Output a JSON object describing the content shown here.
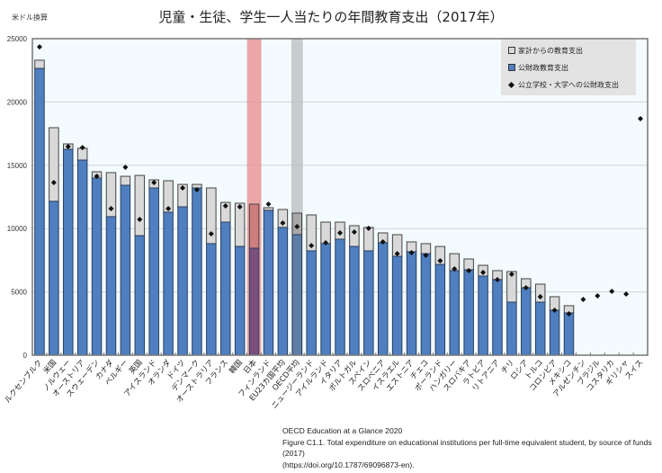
{
  "title": "児童・生徒、学生一人当たりの年間教育支出（2017年）",
  "unit_label": "米ドル換算",
  "legend": {
    "household": "家計からの教育支出",
    "public": "公財政教育支出",
    "public_institutions": "公立学校・大学への公財政支出"
  },
  "footer": {
    "line1": "OECD Education at a Glance 2020",
    "line2": "Figure C1.1. Total expenditure on educational institutions per full-time equivalent student, by source of funds (2017)",
    "line3": "(https://doi.org/10.1787/69096873-en)."
  },
  "colors": {
    "public": "#4f7fc0",
    "household": "#d9d9d9",
    "plot_bg": "#f3fbfe",
    "japan_highlight": "#e88a8a",
    "oecd_highlight": "#b8bcbc",
    "japan_public": "#7a4f7e",
    "oecd_public": "#5e7ea8"
  },
  "chart_data": {
    "type": "bar",
    "stacked": true,
    "title": "児童・生徒、学生一人当たりの年間教育支出（2017年）",
    "xlabel": "",
    "ylabel": "米ドル換算",
    "ylim": [
      0,
      25000
    ],
    "yticks": [
      0,
      5000,
      10000,
      15000,
      20000,
      25000
    ],
    "grid": true,
    "legend_position": "top-right",
    "highlighted_categories": [
      "日本",
      "OECD平均"
    ],
    "categories": [
      "ルクセンブルク",
      "米国",
      "ノルウェー",
      "オーストリア",
      "スウェーデン",
      "カナダ",
      "ベルギー",
      "英国",
      "アイスランド",
      "オランダ",
      "ドイツ",
      "デンマーク",
      "オーストラリア",
      "フランス",
      "韓国",
      "日本",
      "フィンランド",
      "EU23カ国平均",
      "OECD平均",
      "ニュージーランド",
      "アイルランド",
      "イタリア",
      "ポルトガル",
      "スペイン",
      "スロベニア",
      "イスラエル",
      "エストニア",
      "チェコ",
      "ポーランド",
      "ハンガリー",
      "スロバキア",
      "ラトビア",
      "リトアニア",
      "チリ",
      "ロシア",
      "トルコ",
      "コロンビア",
      "メキシコ",
      "アルゼンチン",
      "ブラジル",
      "コスタリカ",
      "ギリシャ",
      "スイス"
    ],
    "series": [
      {
        "name": "公財政教育支出",
        "kind": "bar",
        "values": [
          22650,
          12150,
          16260,
          15410,
          13990,
          10940,
          13420,
          9440,
          13210,
          11290,
          11720,
          13210,
          8810,
          10510,
          8590,
          8450,
          11440,
          10090,
          9520,
          8240,
          8810,
          9160,
          8590,
          8240,
          8880,
          7810,
          8170,
          8020,
          7170,
          6680,
          6750,
          6250,
          5970,
          4190,
          5330,
          4190,
          3550,
          3340,
          null,
          null,
          null,
          null,
          null
        ]
      },
      {
        "name": "家計からの教育支出",
        "kind": "bar",
        "values": [
          650,
          5820,
          430,
          930,
          500,
          3480,
          710,
          4760,
          640,
          2490,
          1770,
          280,
          4400,
          1560,
          3410,
          3480,
          210,
          1420,
          1700,
          2840,
          1700,
          1350,
          1640,
          1850,
          780,
          1710,
          780,
          790,
          1420,
          1340,
          850,
          850,
          710,
          2420,
          710,
          1420,
          1070,
          570,
          null,
          null,
          null,
          null,
          null
        ]
      },
      {
        "name": "公立学校・大学への公財政支出",
        "kind": "marker",
        "values": [
          24350,
          13640,
          16480,
          16400,
          14130,
          11580,
          14840,
          10720,
          13640,
          11580,
          13210,
          13070,
          9590,
          11790,
          11720,
          null,
          11930,
          10440,
          10160,
          8660,
          8880,
          9660,
          9730,
          10020,
          8950,
          8020,
          8100,
          7880,
          7460,
          6820,
          6680,
          6530,
          5970,
          6390,
          5330,
          4620,
          3550,
          3270,
          4400,
          4690,
          5040,
          4830,
          18680
        ]
      }
    ]
  }
}
